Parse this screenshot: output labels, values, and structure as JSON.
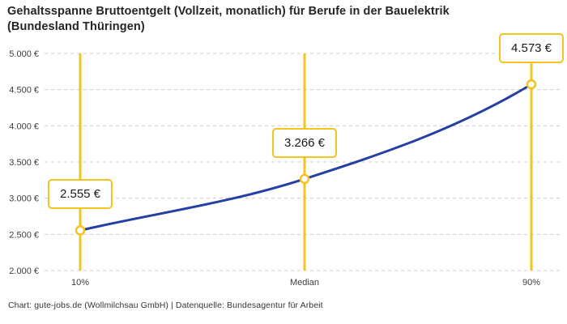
{
  "header": {
    "title_lines": [
      "Gehaltsspanne Bruttoentgelt (Vollzeit, monatlich) für Berufe in der Bauelektrik",
      "(Bundesland Thüringen)"
    ]
  },
  "footer": {
    "credit": "Chart: gute-jobs.de (Wollmilchsau GmbH) | Datenquelle: Bundesagentur für Arbeit"
  },
  "chart_data": {
    "type": "line",
    "title": "Gehaltsspanne Bruttoentgelt (Vollzeit, monatlich) für Berufe in der Bauelektrik (Bundesland Thüringen)",
    "categories": [
      "10%",
      "Median",
      "90%"
    ],
    "values": [
      2555,
      3266,
      4573
    ],
    "value_labels": [
      "2.555 €",
      "3.266 €",
      "4.573 €"
    ],
    "ylabel": "",
    "xlabel": "",
    "ylim": [
      2000,
      5000
    ],
    "y_ticks": {
      "values": [
        2000,
        2500,
        3000,
        3500,
        4000,
        4500,
        5000
      ],
      "labels": [
        "2.000 €",
        "2.500 €",
        "3.000 €",
        "3.500 €",
        "4.000 €",
        "4.500 €",
        "5.000 €"
      ]
    },
    "grid": "horizontal-dashed",
    "legend": "none",
    "colors": {
      "line": "#2540a2",
      "accent": "#f5c31d",
      "grid": "#cccccc",
      "marker_fill": "#ffffff"
    }
  }
}
